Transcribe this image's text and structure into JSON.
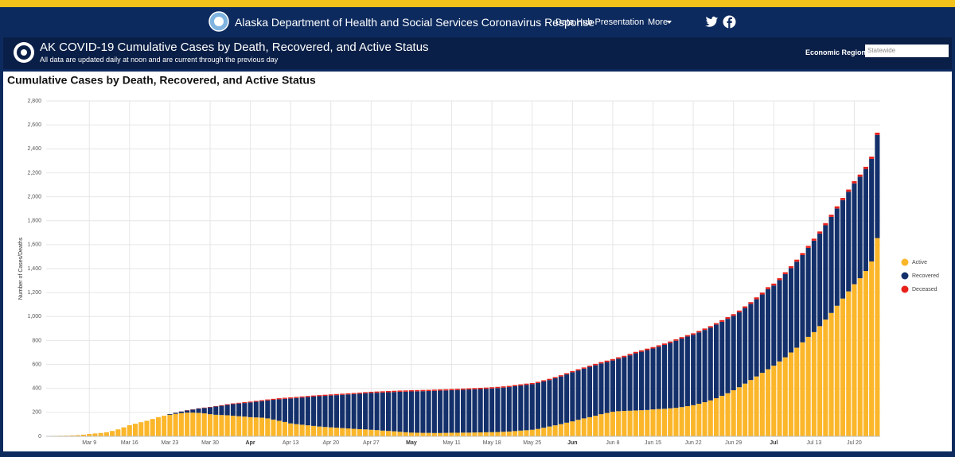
{
  "header": {
    "title": "Alaska Department of Health and Social Services Coronavirus Response",
    "nav": [
      "Data Hub Presentation",
      "More"
    ]
  },
  "panel": {
    "title": "AK COVID-19 Cumulative Cases by Death, Recovered, and Active Status",
    "subtitle": "All data are updated daily at noon and are current through the previous day",
    "filter_label": "Economic Region:",
    "filter_value": "Statewide"
  },
  "chart_data": {
    "type": "stacked_bar",
    "title": "Cumulative Cases by Death, Recovered, and Active Status",
    "y_label": "Number of Cases/Deaths",
    "categories": [
      null,
      null,
      null,
      null,
      null,
      null,
      null,
      "Mar 9",
      null,
      null,
      null,
      null,
      null,
      null,
      "Mar 16",
      null,
      null,
      null,
      null,
      null,
      null,
      "Mar 23",
      null,
      null,
      null,
      null,
      null,
      null,
      "Mar 30",
      null,
      null,
      null,
      null,
      null,
      null,
      "Apr",
      null,
      null,
      null,
      null,
      null,
      null,
      "Apr 13",
      null,
      null,
      null,
      null,
      null,
      null,
      "Apr 20",
      null,
      null,
      null,
      null,
      null,
      null,
      "Apr 27",
      null,
      null,
      null,
      null,
      null,
      null,
      "May",
      null,
      null,
      null,
      null,
      null,
      null,
      "May 11",
      null,
      null,
      null,
      null,
      null,
      null,
      "May 18",
      null,
      null,
      null,
      null,
      null,
      null,
      "May 25",
      null,
      null,
      null,
      null,
      null,
      null,
      "Jun",
      null,
      null,
      null,
      null,
      null,
      null,
      "Jun 8",
      null,
      null,
      null,
      null,
      null,
      null,
      "Jun 15",
      null,
      null,
      null,
      null,
      null,
      null,
      "Jun 22",
      null,
      null,
      null,
      null,
      null,
      null,
      "Jun 29",
      null,
      null,
      null,
      null,
      null,
      null,
      "Jul",
      null,
      null,
      null,
      null,
      null,
      null,
      "Jul 13",
      null,
      null,
      null,
      null,
      null,
      null,
      "Jul 20",
      null,
      null,
      null,
      null
    ],
    "series": [
      {
        "name": "Active",
        "color": "#fbb62a",
        "values": [
          3,
          4,
          5,
          6,
          8,
          10,
          14,
          20,
          24,
          28,
          34,
          45,
          58,
          75,
          93,
          105,
          118,
          130,
          145,
          160,
          172,
          180,
          188,
          194,
          198,
          198,
          196,
          192,
          185,
          180,
          178,
          176,
          172,
          168,
          165,
          160,
          158,
          156,
          150,
          140,
          130,
          120,
          108,
          102,
          97,
          92,
          87,
          82,
          78,
          75,
          72,
          69,
          66,
          63,
          60,
          58,
          55,
          52,
          48,
          45,
          42,
          38,
          34,
          31,
          30,
          29,
          29,
          28,
          28,
          29,
          30,
          30,
          31,
          31,
          32,
          33,
          34,
          35,
          36,
          38,
          40,
          44,
          48,
          51,
          55,
          62,
          72,
          82,
          92,
          102,
          114,
          125,
          138,
          150,
          160,
          172,
          185,
          195,
          205,
          210,
          212,
          214,
          216,
          218,
          220,
          225,
          228,
          230,
          234,
          238,
          244,
          252,
          260,
          272,
          285,
          300,
          318,
          338,
          360,
          385,
          410,
          440,
          470,
          500,
          530,
          560,
          590,
          625,
          660,
          700,
          740,
          785,
          830,
          870,
          920,
          975,
          1030,
          1090,
          1150,
          1210,
          1270,
          1320,
          1380,
          1460,
          1655
        ]
      },
      {
        "name": "Recovered",
        "color": "#14306b",
        "values": [
          0,
          0,
          0,
          0,
          0,
          0,
          0,
          0,
          0,
          0,
          0,
          0,
          0,
          0,
          0,
          0,
          0,
          0,
          0,
          0,
          0,
          6,
          8,
          13,
          18,
          26,
          36,
          45,
          57,
          69,
          77,
          86,
          97,
          106,
          113,
          123,
          131,
          138,
          150,
          165,
          179,
          193,
          208,
          218,
          227,
          236,
          245,
          253,
          260,
          266,
          272,
          278,
          284,
          290,
          296,
          302,
          308,
          312,
          318,
          323,
          328,
          334,
          339,
          344,
          346,
          348,
          349,
          352,
          354,
          354,
          355,
          357,
          358,
          360,
          361,
          362,
          363,
          365,
          367,
          369,
          371,
          374,
          376,
          379,
          380,
          383,
          386,
          388,
          393,
          398,
          403,
          410,
          412,
          415,
          420,
          421,
          423,
          425,
          428,
          438,
          448,
          462,
          477,
          488,
          500,
          508,
          520,
          533,
          546,
          560,
          572,
          581,
          588,
          596,
          603,
          608,
          615,
          618,
          621,
          621,
          626,
          631,
          636,
          644,
          654,
          669,
          669,
          679,
          694,
          704,
          718,
          728,
          743,
          763,
          773,
          787,
          802,
          812,
          822,
          832,
          842,
          847,
          852,
          856,
          861
        ]
      },
      {
        "name": "Deceased",
        "color": "#e8211b",
        "values": [
          0,
          0,
          0,
          0,
          0,
          0,
          0,
          0,
          0,
          0,
          0,
          0,
          0,
          0,
          0,
          0,
          0,
          0,
          0,
          0,
          0,
          0,
          1,
          1,
          2,
          2,
          2,
          3,
          3,
          3,
          5,
          6,
          6,
          6,
          7,
          7,
          7,
          8,
          8,
          8,
          9,
          9,
          9,
          9,
          9,
          9,
          9,
          9,
          9,
          9,
          9,
          9,
          9,
          9,
          9,
          9,
          9,
          10,
          10,
          10,
          10,
          10,
          10,
          10,
          10,
          10,
          10,
          10,
          10,
          10,
          10,
          10,
          10,
          10,
          10,
          10,
          10,
          10,
          10,
          10,
          10,
          10,
          10,
          10,
          10,
          10,
          10,
          10,
          10,
          10,
          10,
          10,
          10,
          10,
          10,
          12,
          12,
          12,
          12,
          12,
          12,
          12,
          12,
          12,
          12,
          12,
          12,
          12,
          12,
          12,
          12,
          12,
          12,
          12,
          12,
          12,
          12,
          14,
          14,
          14,
          14,
          14,
          14,
          16,
          16,
          16,
          16,
          16,
          16,
          16,
          17,
          17,
          17,
          17,
          17,
          18,
          18,
          18,
          18,
          18,
          18,
          18,
          18,
          19,
          19
        ]
      }
    ],
    "ylim": [
      0,
      2800
    ],
    "yticks": [
      0,
      200,
      400,
      600,
      800,
      {
        "value": 1000,
        "label": "1,000"
      },
      {
        "value": 1200,
        "label": "1,200"
      },
      {
        "value": 1400,
        "label": "1,400"
      },
      {
        "value": 1600,
        "label": "1,600"
      },
      {
        "value": 1800,
        "label": "1,800"
      },
      {
        "value": 2000,
        "label": "2,000"
      },
      {
        "value": 2200,
        "label": "2,200"
      },
      {
        "value": 2400,
        "label": "2,400"
      },
      {
        "value": 2600,
        "label": "2,600"
      },
      {
        "value": 2800,
        "label": "2,800"
      }
    ],
    "grid": true,
    "legend": "right"
  }
}
